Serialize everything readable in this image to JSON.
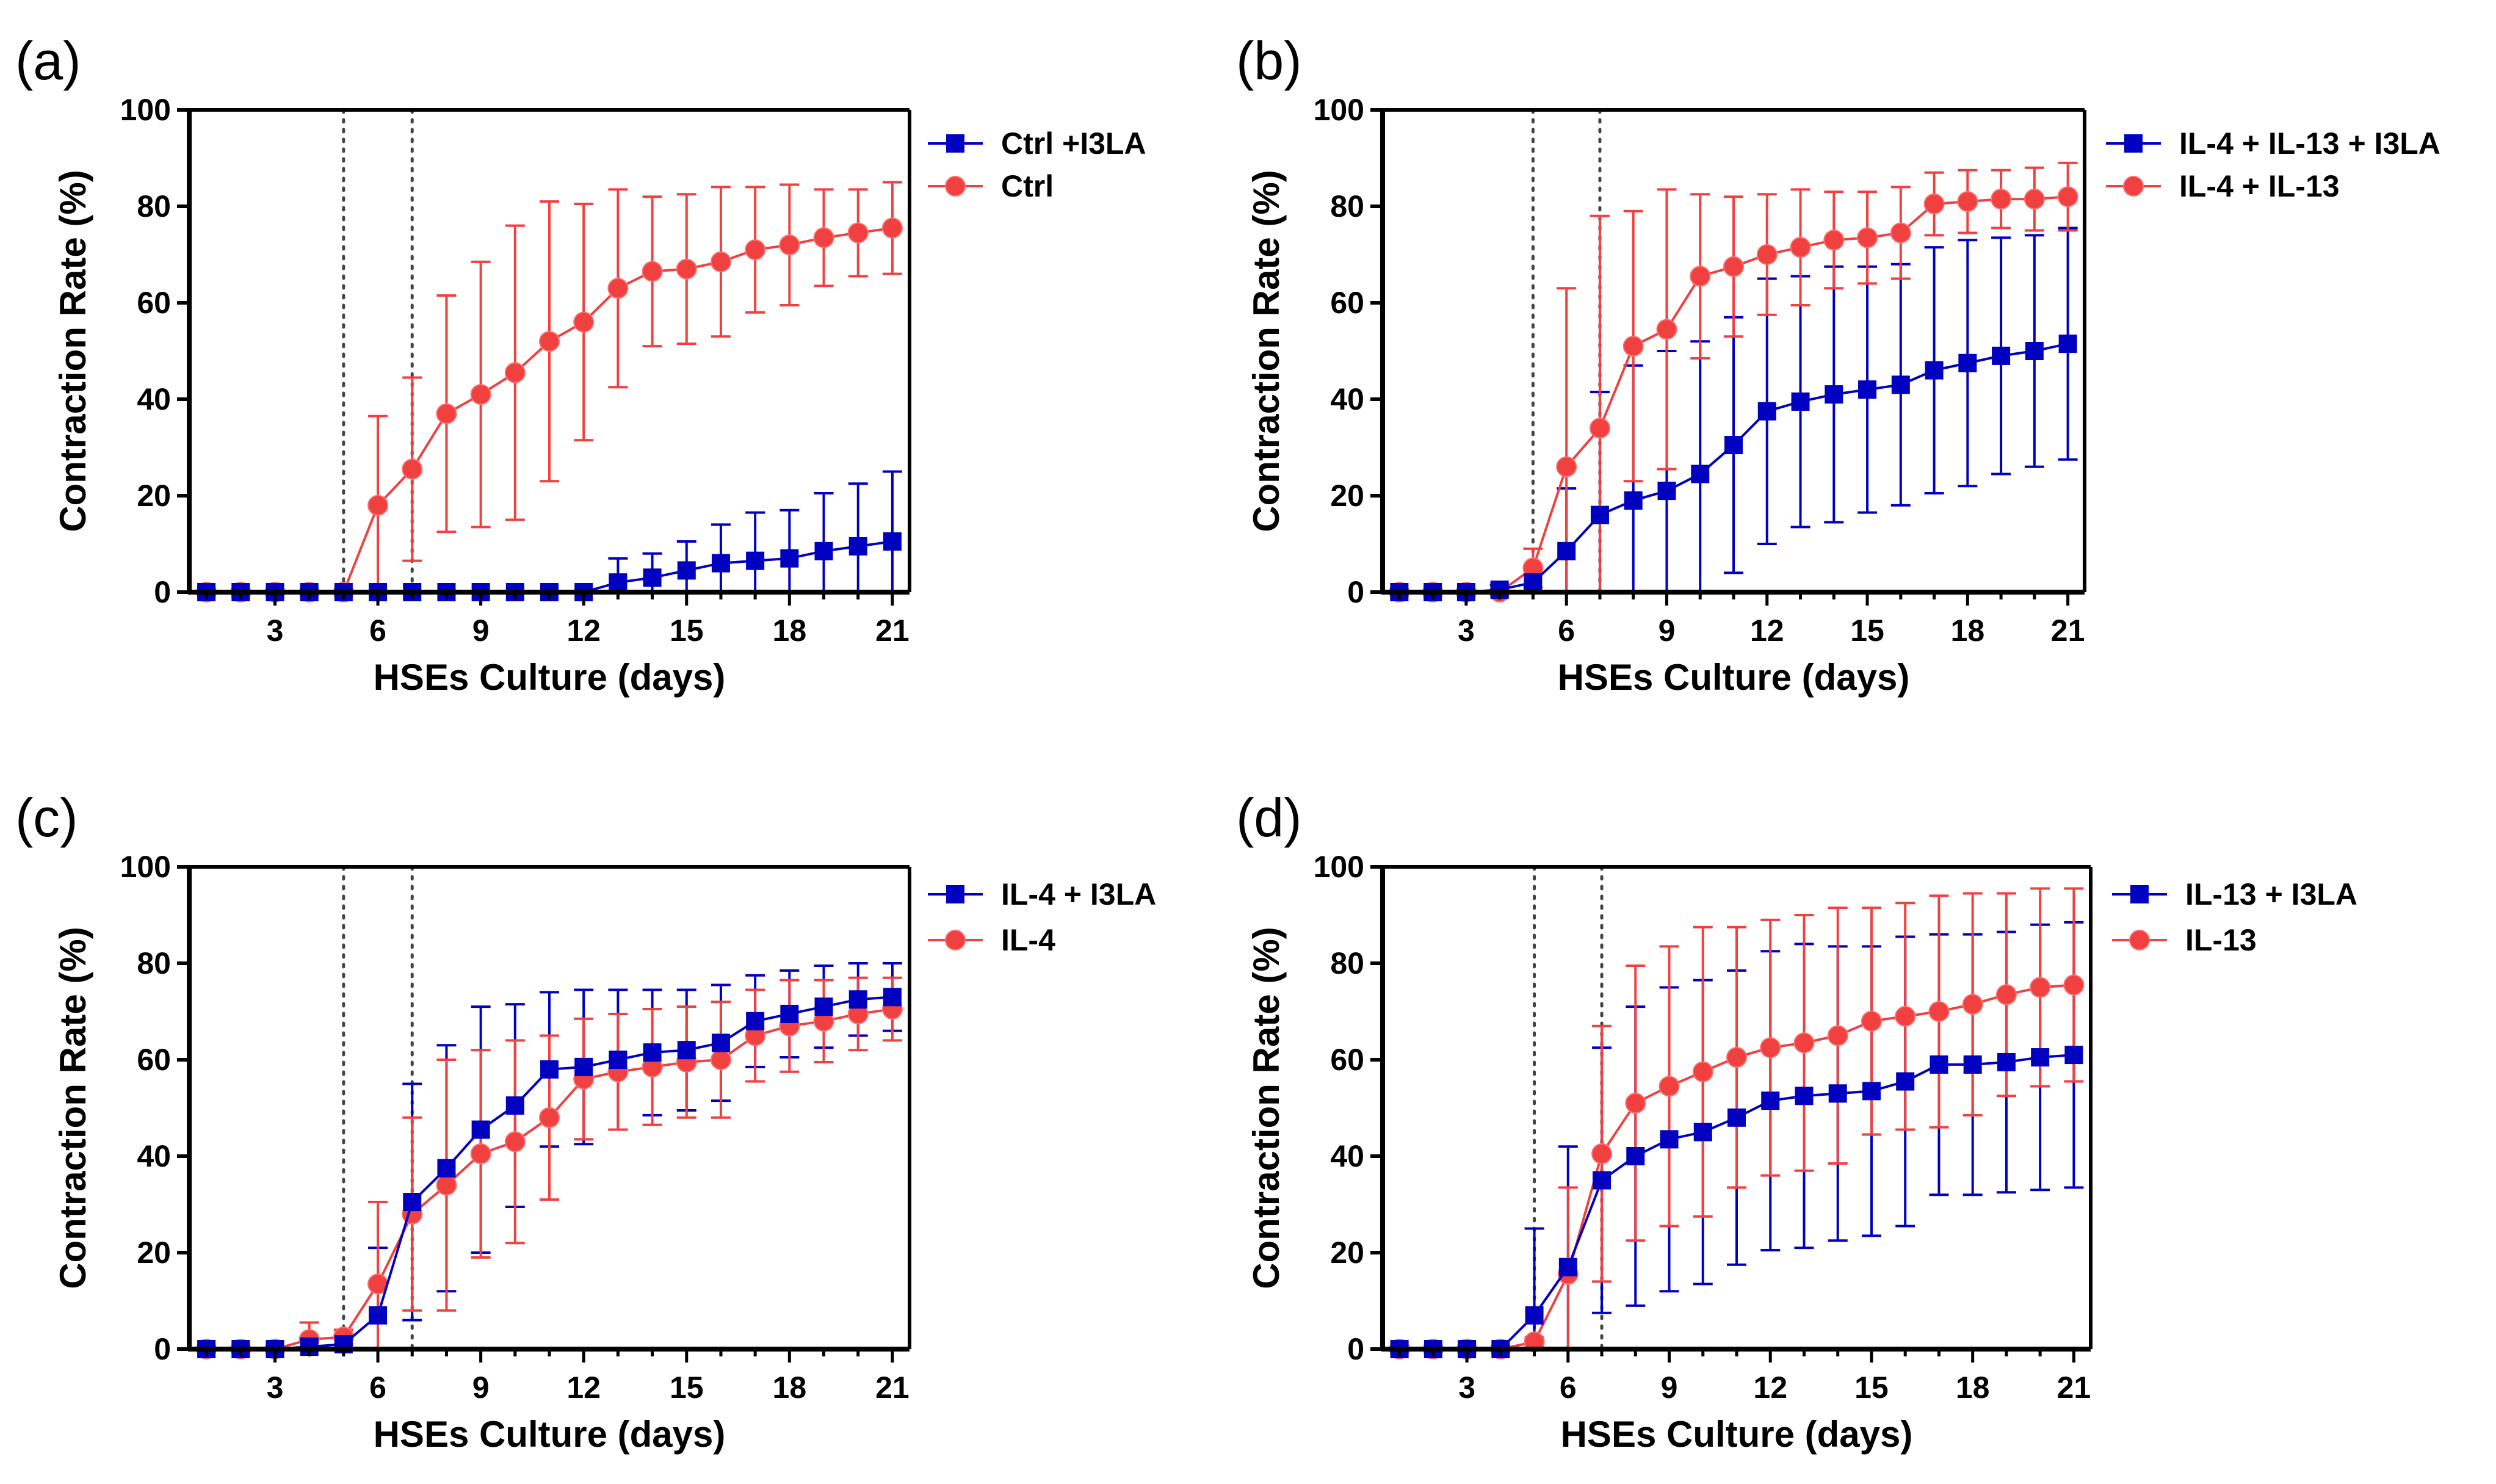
{
  "figure": {
    "colors": {
      "treated": "#0000c0",
      "untreated": "#f04040",
      "axis": "#000000",
      "marker_line": "#555555"
    }
  },
  "chart_data": [
    {
      "type": "line",
      "panel_label": "(a)",
      "xlabel": "HSEs Culture (days)",
      "ylabel": "Contraction Rate (%)",
      "xlim": [
        0.5,
        21.5
      ],
      "ylim": [
        0,
        100
      ],
      "xticks": [
        3,
        6,
        9,
        12,
        15,
        18,
        21
      ],
      "yticks": [
        0,
        20,
        40,
        60,
        80,
        100
      ],
      "vlines": [
        5,
        7
      ],
      "x": [
        1,
        2,
        3,
        4,
        5,
        6,
        7,
        8,
        9,
        10,
        11,
        12,
        13,
        14,
        15,
        16,
        17,
        18,
        19,
        20,
        21
      ],
      "series": [
        {
          "name": "Ctrl +I3LA",
          "marker": "square",
          "color": "#0000c0",
          "values": [
            0,
            0,
            0,
            0,
            0,
            0,
            0,
            0,
            0,
            0,
            0,
            0,
            2,
            3,
            4.5,
            6,
            6.5,
            7,
            8.5,
            9.5,
            10.5
          ],
          "errors": [
            0,
            0,
            0,
            0,
            0,
            0,
            0,
            0,
            0,
            0,
            0,
            0,
            5,
            5,
            6,
            8,
            10,
            10,
            12,
            13,
            14.5
          ]
        },
        {
          "name": "Ctrl",
          "marker": "circle",
          "color": "#f04040",
          "values": [
            0,
            0,
            0,
            0,
            0,
            18,
            25.5,
            37,
            41,
            45.5,
            52,
            56,
            63,
            66.5,
            67,
            68.5,
            71,
            72,
            73.5,
            74.5,
            75.5
          ],
          "errors": [
            0,
            0,
            0,
            0,
            0,
            18.5,
            19,
            24.5,
            27.5,
            30.5,
            29,
            24.5,
            20.5,
            15.5,
            15.5,
            15.5,
            13,
            12.5,
            10,
            9,
            9.5
          ]
        }
      ]
    },
    {
      "type": "line",
      "panel_label": "(b)",
      "xlabel": "HSEs Culture (days)",
      "ylabel": "Contraction Rate (%)",
      "xlim": [
        0.5,
        21.5
      ],
      "ylim": [
        0,
        100
      ],
      "xticks": [
        3,
        6,
        9,
        12,
        15,
        18,
        21
      ],
      "yticks": [
        0,
        20,
        40,
        60,
        80,
        100
      ],
      "vlines": [
        5,
        7
      ],
      "x": [
        1,
        2,
        3,
        4,
        5,
        6,
        7,
        8,
        9,
        10,
        11,
        12,
        13,
        14,
        15,
        16,
        17,
        18,
        19,
        20,
        21
      ],
      "series": [
        {
          "name": "IL-4 + IL-13 + I3LA",
          "marker": "square",
          "color": "#0000c0",
          "values": [
            0,
            0,
            0,
            0.5,
            2,
            8.5,
            16,
            19,
            21,
            24.5,
            30.5,
            37.5,
            39.5,
            41,
            42,
            43,
            46,
            47.5,
            49,
            50,
            51.5
          ],
          "errors": [
            0,
            0,
            0,
            1,
            3,
            13,
            25.5,
            28,
            29,
            27.5,
            26.5,
            27.5,
            26,
            26.5,
            25.5,
            25,
            25.5,
            25.5,
            24.5,
            24,
            24
          ]
        },
        {
          "name": "IL-4 + IL-13",
          "marker": "circle",
          "color": "#f04040",
          "values": [
            0,
            0,
            0,
            0,
            5,
            26,
            34,
            51,
            54.5,
            65.5,
            67.5,
            70,
            71.5,
            73,
            73.5,
            74.5,
            80.5,
            81,
            81.5,
            81.5,
            82
          ],
          "errors": [
            0,
            0,
            0,
            0,
            4,
            37,
            44,
            28,
            29,
            17,
            14.5,
            12.5,
            12,
            10,
            9.5,
            9.5,
            6.5,
            6.5,
            6,
            6.5,
            7
          ]
        }
      ]
    },
    {
      "type": "line",
      "panel_label": "(c)",
      "xlabel": "HSEs Culture (days)",
      "ylabel": "Contraction Rate (%)",
      "xlim": [
        0.5,
        21.5
      ],
      "ylim": [
        0,
        100
      ],
      "xticks": [
        3,
        6,
        9,
        12,
        15,
        18,
        21
      ],
      "yticks": [
        0,
        20,
        40,
        60,
        80,
        100
      ],
      "vlines": [
        5,
        7
      ],
      "x": [
        1,
        2,
        3,
        4,
        5,
        6,
        7,
        8,
        9,
        10,
        11,
        12,
        13,
        14,
        15,
        16,
        17,
        18,
        19,
        20,
        21
      ],
      "series": [
        {
          "name": "IL-4 + I3LA",
          "marker": "square",
          "color": "#0000c0",
          "values": [
            0,
            0,
            0,
            0.5,
            1,
            7,
            30.5,
            37.5,
            45.5,
            50.5,
            58,
            58.5,
            60,
            61.5,
            62,
            63.5,
            68,
            69.5,
            71,
            72.5,
            73
          ],
          "errors": [
            0,
            0,
            0,
            1,
            2,
            14,
            24.5,
            25.5,
            25.5,
            21,
            16,
            16,
            14.5,
            13,
            12.5,
            12,
            9.5,
            9,
            8.5,
            7.5,
            7
          ]
        },
        {
          "name": "IL-4",
          "marker": "circle",
          "color": "#f04040",
          "values": [
            0,
            0,
            0,
            2,
            2.5,
            13.5,
            28,
            34,
            40.5,
            43,
            48,
            56,
            57.5,
            58.5,
            59.5,
            60,
            65,
            67,
            68,
            69.5,
            70.5
          ],
          "errors": [
            0,
            0,
            0,
            3.5,
            1.5,
            17,
            20,
            26,
            21.5,
            21,
            17,
            12.5,
            12,
            12,
            11.5,
            12,
            9.5,
            9.5,
            8.5,
            7.5,
            6.5
          ]
        }
      ]
    },
    {
      "type": "line",
      "panel_label": "(d)",
      "xlabel": "HSEs Culture (days)",
      "ylabel": "Contraction Rate (%)",
      "xlim": [
        0.5,
        21.5
      ],
      "ylim": [
        0,
        100
      ],
      "xticks": [
        3,
        6,
        9,
        12,
        15,
        18,
        21
      ],
      "yticks": [
        0,
        20,
        40,
        60,
        80,
        100
      ],
      "vlines": [
        5,
        7
      ],
      "x": [
        1,
        2,
        3,
        4,
        5,
        6,
        7,
        8,
        9,
        10,
        11,
        12,
        13,
        14,
        15,
        16,
        17,
        18,
        19,
        20,
        21
      ],
      "series": [
        {
          "name": "IL-13 + I3LA",
          "marker": "square",
          "color": "#0000c0",
          "values": [
            0,
            0,
            0,
            0,
            7,
            17,
            35,
            40,
            43.5,
            45,
            48,
            51.5,
            52.5,
            53,
            53.5,
            55.5,
            59,
            59,
            59.5,
            60.5,
            61
          ],
          "errors": [
            0,
            0,
            0,
            0,
            18,
            25,
            27.5,
            31,
            31.5,
            31.5,
            30.5,
            31,
            31.5,
            30.5,
            30,
            30,
            27,
            27,
            27,
            27.5,
            27.5
          ]
        },
        {
          "name": "IL-13",
          "marker": "circle",
          "color": "#f04040",
          "values": [
            0,
            0,
            0,
            0,
            1.5,
            15.5,
            40.5,
            51,
            54.5,
            57.5,
            60.5,
            62.5,
            63.5,
            65,
            68,
            69,
            70,
            71.5,
            73.5,
            75,
            75.5
          ],
          "errors": [
            0,
            0,
            0,
            0,
            1,
            18,
            26.5,
            28.5,
            29,
            30,
            27,
            26.5,
            26.5,
            26.5,
            23.5,
            23.5,
            24,
            23,
            21,
            20.5,
            20
          ]
        }
      ]
    }
  ]
}
